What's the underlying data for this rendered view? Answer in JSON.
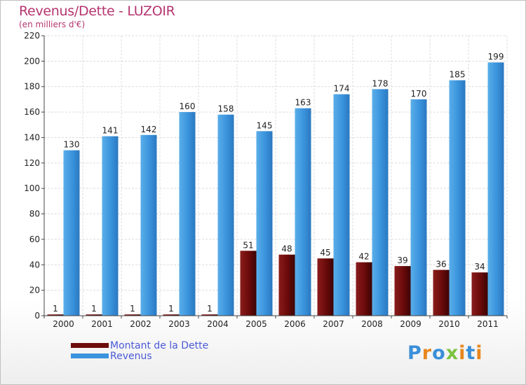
{
  "header": {
    "title": "Revenus/Dette - LUZOIR",
    "subtitle": "(en milliers d'€)"
  },
  "logo": {
    "text": "Proxiti",
    "letter_colors": [
      "#3a8fd9",
      "#e8861e",
      "#3a8fd9",
      "#7cc242",
      "#e8861e",
      "#3a8fd9",
      "#e8861e"
    ]
  },
  "chart_data": {
    "type": "bar",
    "title": "Revenus/Dette - LUZOIR",
    "subtitle": "(en milliers d'€)",
    "categories": [
      "2000",
      "2001",
      "2002",
      "2003",
      "2004",
      "2005",
      "2006",
      "2007",
      "2008",
      "2009",
      "2010",
      "2011"
    ],
    "series": [
      {
        "name": "Montant de la Dette",
        "color": "#6e0c0c",
        "values": [
          1,
          1,
          1,
          1,
          1,
          51,
          48,
          45,
          42,
          39,
          36,
          34
        ]
      },
      {
        "name": "Revenus",
        "color": "#3a93dc",
        "values": [
          130,
          141,
          142,
          160,
          158,
          145,
          163,
          174,
          178,
          170,
          185,
          199
        ]
      }
    ],
    "ylim": [
      0,
      220
    ],
    "yticks": [
      0,
      20,
      40,
      60,
      80,
      100,
      120,
      140,
      160,
      180,
      200,
      220
    ],
    "grid": true,
    "legend_position": "bottom-left"
  }
}
